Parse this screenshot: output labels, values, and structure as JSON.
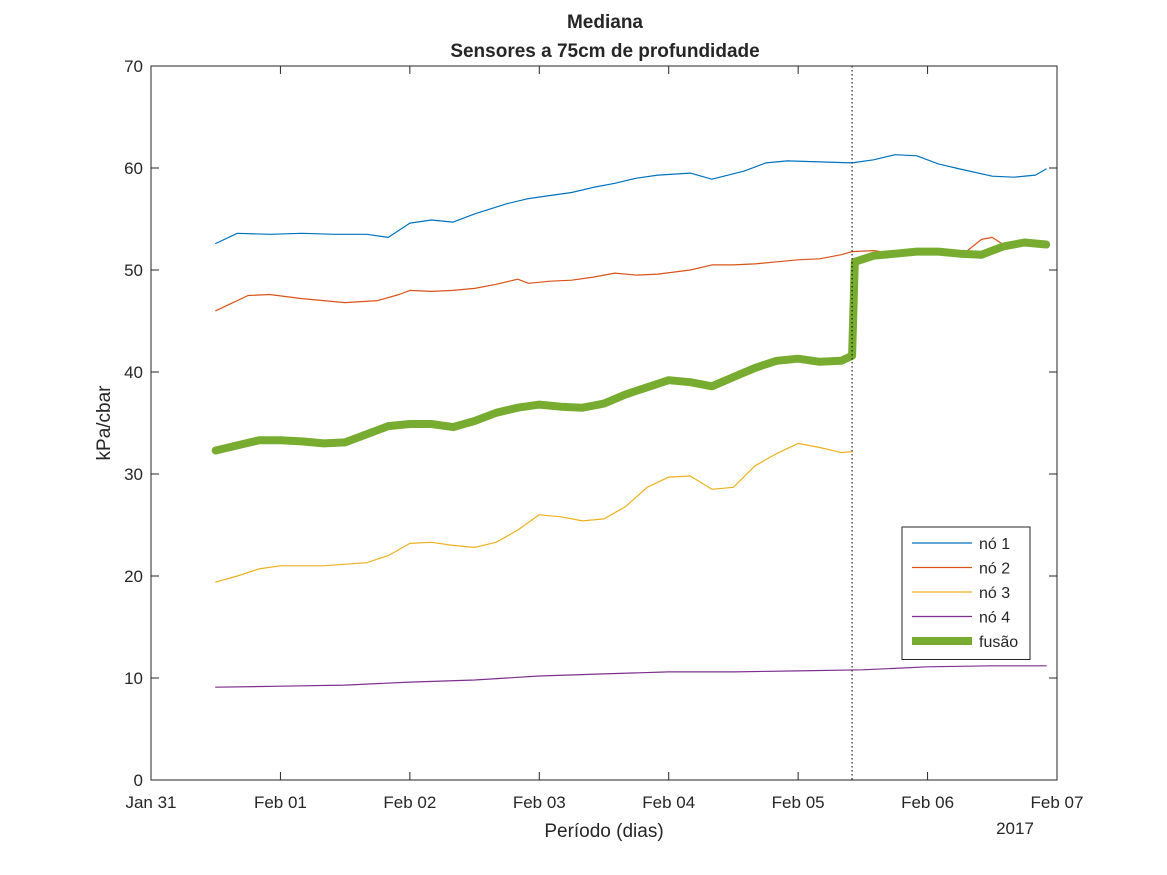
{
  "chart_data": {
    "type": "line",
    "title": "Mediana",
    "subtitle": "Sensores a 75cm de profundidade",
    "xlabel": "Período (dias)",
    "ylabel": "kPa/cbar",
    "x_year_label": "2017",
    "xlim": [
      "2017-01-31T00:00",
      "2017-02-07T00:00"
    ],
    "ylim": [
      0,
      70
    ],
    "x_ticks": [
      "Jan 31",
      "Feb 01",
      "Feb 02",
      "Feb 03",
      "Feb 04",
      "Feb 05",
      "Feb 06",
      "Feb 07"
    ],
    "y_ticks": [
      0,
      10,
      20,
      30,
      40,
      50,
      60,
      70
    ],
    "grid": false,
    "legend_position": "bottom-right",
    "vertical_marker": "2017-02-05T10:00",
    "series": [
      {
        "name": "nó 1",
        "color": "#0072BD",
        "points": [
          [
            "2017-01-31T12:00",
            52.6
          ],
          [
            "2017-01-31T16:00",
            53.6
          ],
          [
            "2017-01-31T22:00",
            53.5
          ],
          [
            "2017-02-01T04:00",
            53.6
          ],
          [
            "2017-02-01T10:00",
            53.5
          ],
          [
            "2017-02-01T16:00",
            53.5
          ],
          [
            "2017-02-01T20:00",
            53.2
          ],
          [
            "2017-02-02T00:00",
            54.6
          ],
          [
            "2017-02-02T04:00",
            54.9
          ],
          [
            "2017-02-02T08:00",
            54.7
          ],
          [
            "2017-02-02T12:00",
            55.5
          ],
          [
            "2017-02-02T18:00",
            56.5
          ],
          [
            "2017-02-02T22:00",
            57.0
          ],
          [
            "2017-02-03T02:00",
            57.3
          ],
          [
            "2017-02-03T06:00",
            57.6
          ],
          [
            "2017-02-03T10:00",
            58.1
          ],
          [
            "2017-02-03T14:00",
            58.5
          ],
          [
            "2017-02-03T18:00",
            59.0
          ],
          [
            "2017-02-03T22:00",
            59.3
          ],
          [
            "2017-02-04T04:00",
            59.5
          ],
          [
            "2017-02-04T08:00",
            58.9
          ],
          [
            "2017-02-04T14:00",
            59.7
          ],
          [
            "2017-02-04T18:00",
            60.5
          ],
          [
            "2017-02-04T22:00",
            60.7
          ],
          [
            "2017-02-05T04:00",
            60.6
          ],
          [
            "2017-02-05T10:00",
            60.5
          ],
          [
            "2017-02-05T14:00",
            60.8
          ],
          [
            "2017-02-05T18:00",
            61.3
          ],
          [
            "2017-02-05T22:00",
            61.2
          ],
          [
            "2017-02-06T02:00",
            60.4
          ],
          [
            "2017-02-06T06:00",
            59.9
          ],
          [
            "2017-02-06T12:00",
            59.2
          ],
          [
            "2017-02-06T16:00",
            59.1
          ],
          [
            "2017-02-06T20:00",
            59.3
          ],
          [
            "2017-02-06T22:00",
            59.9
          ]
        ]
      },
      {
        "name": "nó 2",
        "color": "#D95319",
        "points": [
          [
            "2017-01-31T12:00",
            46.0
          ],
          [
            "2017-01-31T14:00",
            46.5
          ],
          [
            "2017-01-31T18:00",
            47.5
          ],
          [
            "2017-01-31T22:00",
            47.6
          ],
          [
            "2017-02-01T04:00",
            47.2
          ],
          [
            "2017-02-01T08:00",
            47.0
          ],
          [
            "2017-02-01T12:00",
            46.8
          ],
          [
            "2017-02-01T18:00",
            47.0
          ],
          [
            "2017-02-01T22:00",
            47.6
          ],
          [
            "2017-02-02T00:00",
            48.0
          ],
          [
            "2017-02-02T04:00",
            47.9
          ],
          [
            "2017-02-02T08:00",
            48.0
          ],
          [
            "2017-02-02T12:00",
            48.2
          ],
          [
            "2017-02-02T16:00",
            48.6
          ],
          [
            "2017-02-02T20:00",
            49.1
          ],
          [
            "2017-02-02T22:00",
            48.7
          ],
          [
            "2017-02-03T02:00",
            48.9
          ],
          [
            "2017-02-03T06:00",
            49.0
          ],
          [
            "2017-02-03T10:00",
            49.3
          ],
          [
            "2017-02-03T14:00",
            49.7
          ],
          [
            "2017-02-03T18:00",
            49.5
          ],
          [
            "2017-02-03T22:00",
            49.6
          ],
          [
            "2017-02-04T04:00",
            50.0
          ],
          [
            "2017-02-04T08:00",
            50.5
          ],
          [
            "2017-02-04T12:00",
            50.5
          ],
          [
            "2017-02-04T16:00",
            50.6
          ],
          [
            "2017-02-04T20:00",
            50.8
          ],
          [
            "2017-02-05T00:00",
            51.0
          ],
          [
            "2017-02-05T04:00",
            51.1
          ],
          [
            "2017-02-05T08:00",
            51.5
          ],
          [
            "2017-02-05T10:00",
            51.8
          ],
          [
            "2017-02-05T14:00",
            51.9
          ],
          [
            "2017-02-05T18:00",
            51.6
          ],
          [
            "2017-02-05T22:00",
            51.8
          ],
          [
            "2017-02-06T02:00",
            51.6
          ],
          [
            "2017-02-06T06:00",
            51.3
          ],
          [
            "2017-02-06T10:00",
            53.0
          ],
          [
            "2017-02-06T12:00",
            53.2
          ],
          [
            "2017-02-06T14:00",
            52.5
          ],
          [
            "2017-02-06T18:00",
            52.8
          ],
          [
            "2017-02-06T22:00",
            52.5
          ]
        ]
      },
      {
        "name": "nó 3",
        "color": "#EDB120",
        "points": [
          [
            "2017-01-31T12:00",
            19.4
          ],
          [
            "2017-01-31T16:00",
            20.0
          ],
          [
            "2017-01-31T20:00",
            20.7
          ],
          [
            "2017-02-01T00:00",
            21.0
          ],
          [
            "2017-02-01T08:00",
            21.0
          ],
          [
            "2017-02-01T16:00",
            21.3
          ],
          [
            "2017-02-01T20:00",
            22.0
          ],
          [
            "2017-02-02T00:00",
            23.2
          ],
          [
            "2017-02-02T04:00",
            23.3
          ],
          [
            "2017-02-02T08:00",
            23.0
          ],
          [
            "2017-02-02T12:00",
            22.8
          ],
          [
            "2017-02-02T16:00",
            23.3
          ],
          [
            "2017-02-02T20:00",
            24.5
          ],
          [
            "2017-02-03T00:00",
            26.0
          ],
          [
            "2017-02-03T04:00",
            25.8
          ],
          [
            "2017-02-03T08:00",
            25.4
          ],
          [
            "2017-02-03T12:00",
            25.6
          ],
          [
            "2017-02-03T16:00",
            26.8
          ],
          [
            "2017-02-03T20:00",
            28.7
          ],
          [
            "2017-02-04T00:00",
            29.7
          ],
          [
            "2017-02-04T04:00",
            29.8
          ],
          [
            "2017-02-04T08:00",
            28.5
          ],
          [
            "2017-02-04T12:00",
            28.7
          ],
          [
            "2017-02-04T16:00",
            30.8
          ],
          [
            "2017-02-04T20:00",
            32.0
          ],
          [
            "2017-02-05T00:00",
            33.0
          ],
          [
            "2017-02-05T04:00",
            32.6
          ],
          [
            "2017-02-05T08:00",
            32.1
          ],
          [
            "2017-02-05T10:00",
            32.2
          ]
        ]
      },
      {
        "name": "nó 4",
        "color": "#7E2F8E",
        "points": [
          [
            "2017-01-31T12:00",
            9.1
          ],
          [
            "2017-02-01T00:00",
            9.2
          ],
          [
            "2017-02-01T12:00",
            9.3
          ],
          [
            "2017-02-02T00:00",
            9.6
          ],
          [
            "2017-02-02T12:00",
            9.8
          ],
          [
            "2017-02-03T00:00",
            10.2
          ],
          [
            "2017-02-03T12:00",
            10.4
          ],
          [
            "2017-02-04T00:00",
            10.6
          ],
          [
            "2017-02-04T12:00",
            10.6
          ],
          [
            "2017-02-05T00:00",
            10.7
          ],
          [
            "2017-02-05T12:00",
            10.8
          ],
          [
            "2017-02-06T00:00",
            11.1
          ],
          [
            "2017-02-06T12:00",
            11.2
          ],
          [
            "2017-02-06T22:00",
            11.2
          ]
        ]
      },
      {
        "name": "fusão",
        "color": "#77AC30",
        "points": [
          [
            "2017-01-31T12:00",
            32.3
          ],
          [
            "2017-01-31T16:00",
            32.8
          ],
          [
            "2017-01-31T20:00",
            33.3
          ],
          [
            "2017-02-01T00:00",
            33.3
          ],
          [
            "2017-02-01T04:00",
            33.2
          ],
          [
            "2017-02-01T08:00",
            33.0
          ],
          [
            "2017-02-01T12:00",
            33.1
          ],
          [
            "2017-02-01T16:00",
            33.9
          ],
          [
            "2017-02-01T20:00",
            34.7
          ],
          [
            "2017-02-02T00:00",
            34.9
          ],
          [
            "2017-02-02T04:00",
            34.9
          ],
          [
            "2017-02-02T08:00",
            34.6
          ],
          [
            "2017-02-02T12:00",
            35.2
          ],
          [
            "2017-02-02T16:00",
            36.0
          ],
          [
            "2017-02-02T20:00",
            36.5
          ],
          [
            "2017-02-03T00:00",
            36.8
          ],
          [
            "2017-02-03T04:00",
            36.6
          ],
          [
            "2017-02-03T08:00",
            36.5
          ],
          [
            "2017-02-03T12:00",
            36.9
          ],
          [
            "2017-02-03T16:00",
            37.8
          ],
          [
            "2017-02-03T20:00",
            38.5
          ],
          [
            "2017-02-04T00:00",
            39.2
          ],
          [
            "2017-02-04T04:00",
            39.0
          ],
          [
            "2017-02-04T08:00",
            38.6
          ],
          [
            "2017-02-04T12:00",
            39.5
          ],
          [
            "2017-02-04T16:00",
            40.4
          ],
          [
            "2017-02-04T20:00",
            41.1
          ],
          [
            "2017-02-05T00:00",
            41.3
          ],
          [
            "2017-02-05T04:00",
            41.0
          ],
          [
            "2017-02-05T08:00",
            41.1
          ],
          [
            "2017-02-05T10:00",
            41.6
          ],
          [
            "2017-02-05T10:30",
            50.8
          ],
          [
            "2017-02-05T14:00",
            51.4
          ],
          [
            "2017-02-05T18:00",
            51.6
          ],
          [
            "2017-02-05T22:00",
            51.8
          ],
          [
            "2017-02-06T02:00",
            51.8
          ],
          [
            "2017-02-06T06:00",
            51.6
          ],
          [
            "2017-02-06T10:00",
            51.5
          ],
          [
            "2017-02-06T14:00",
            52.3
          ],
          [
            "2017-02-06T18:00",
            52.7
          ],
          [
            "2017-02-06T22:00",
            52.5
          ]
        ]
      }
    ]
  }
}
